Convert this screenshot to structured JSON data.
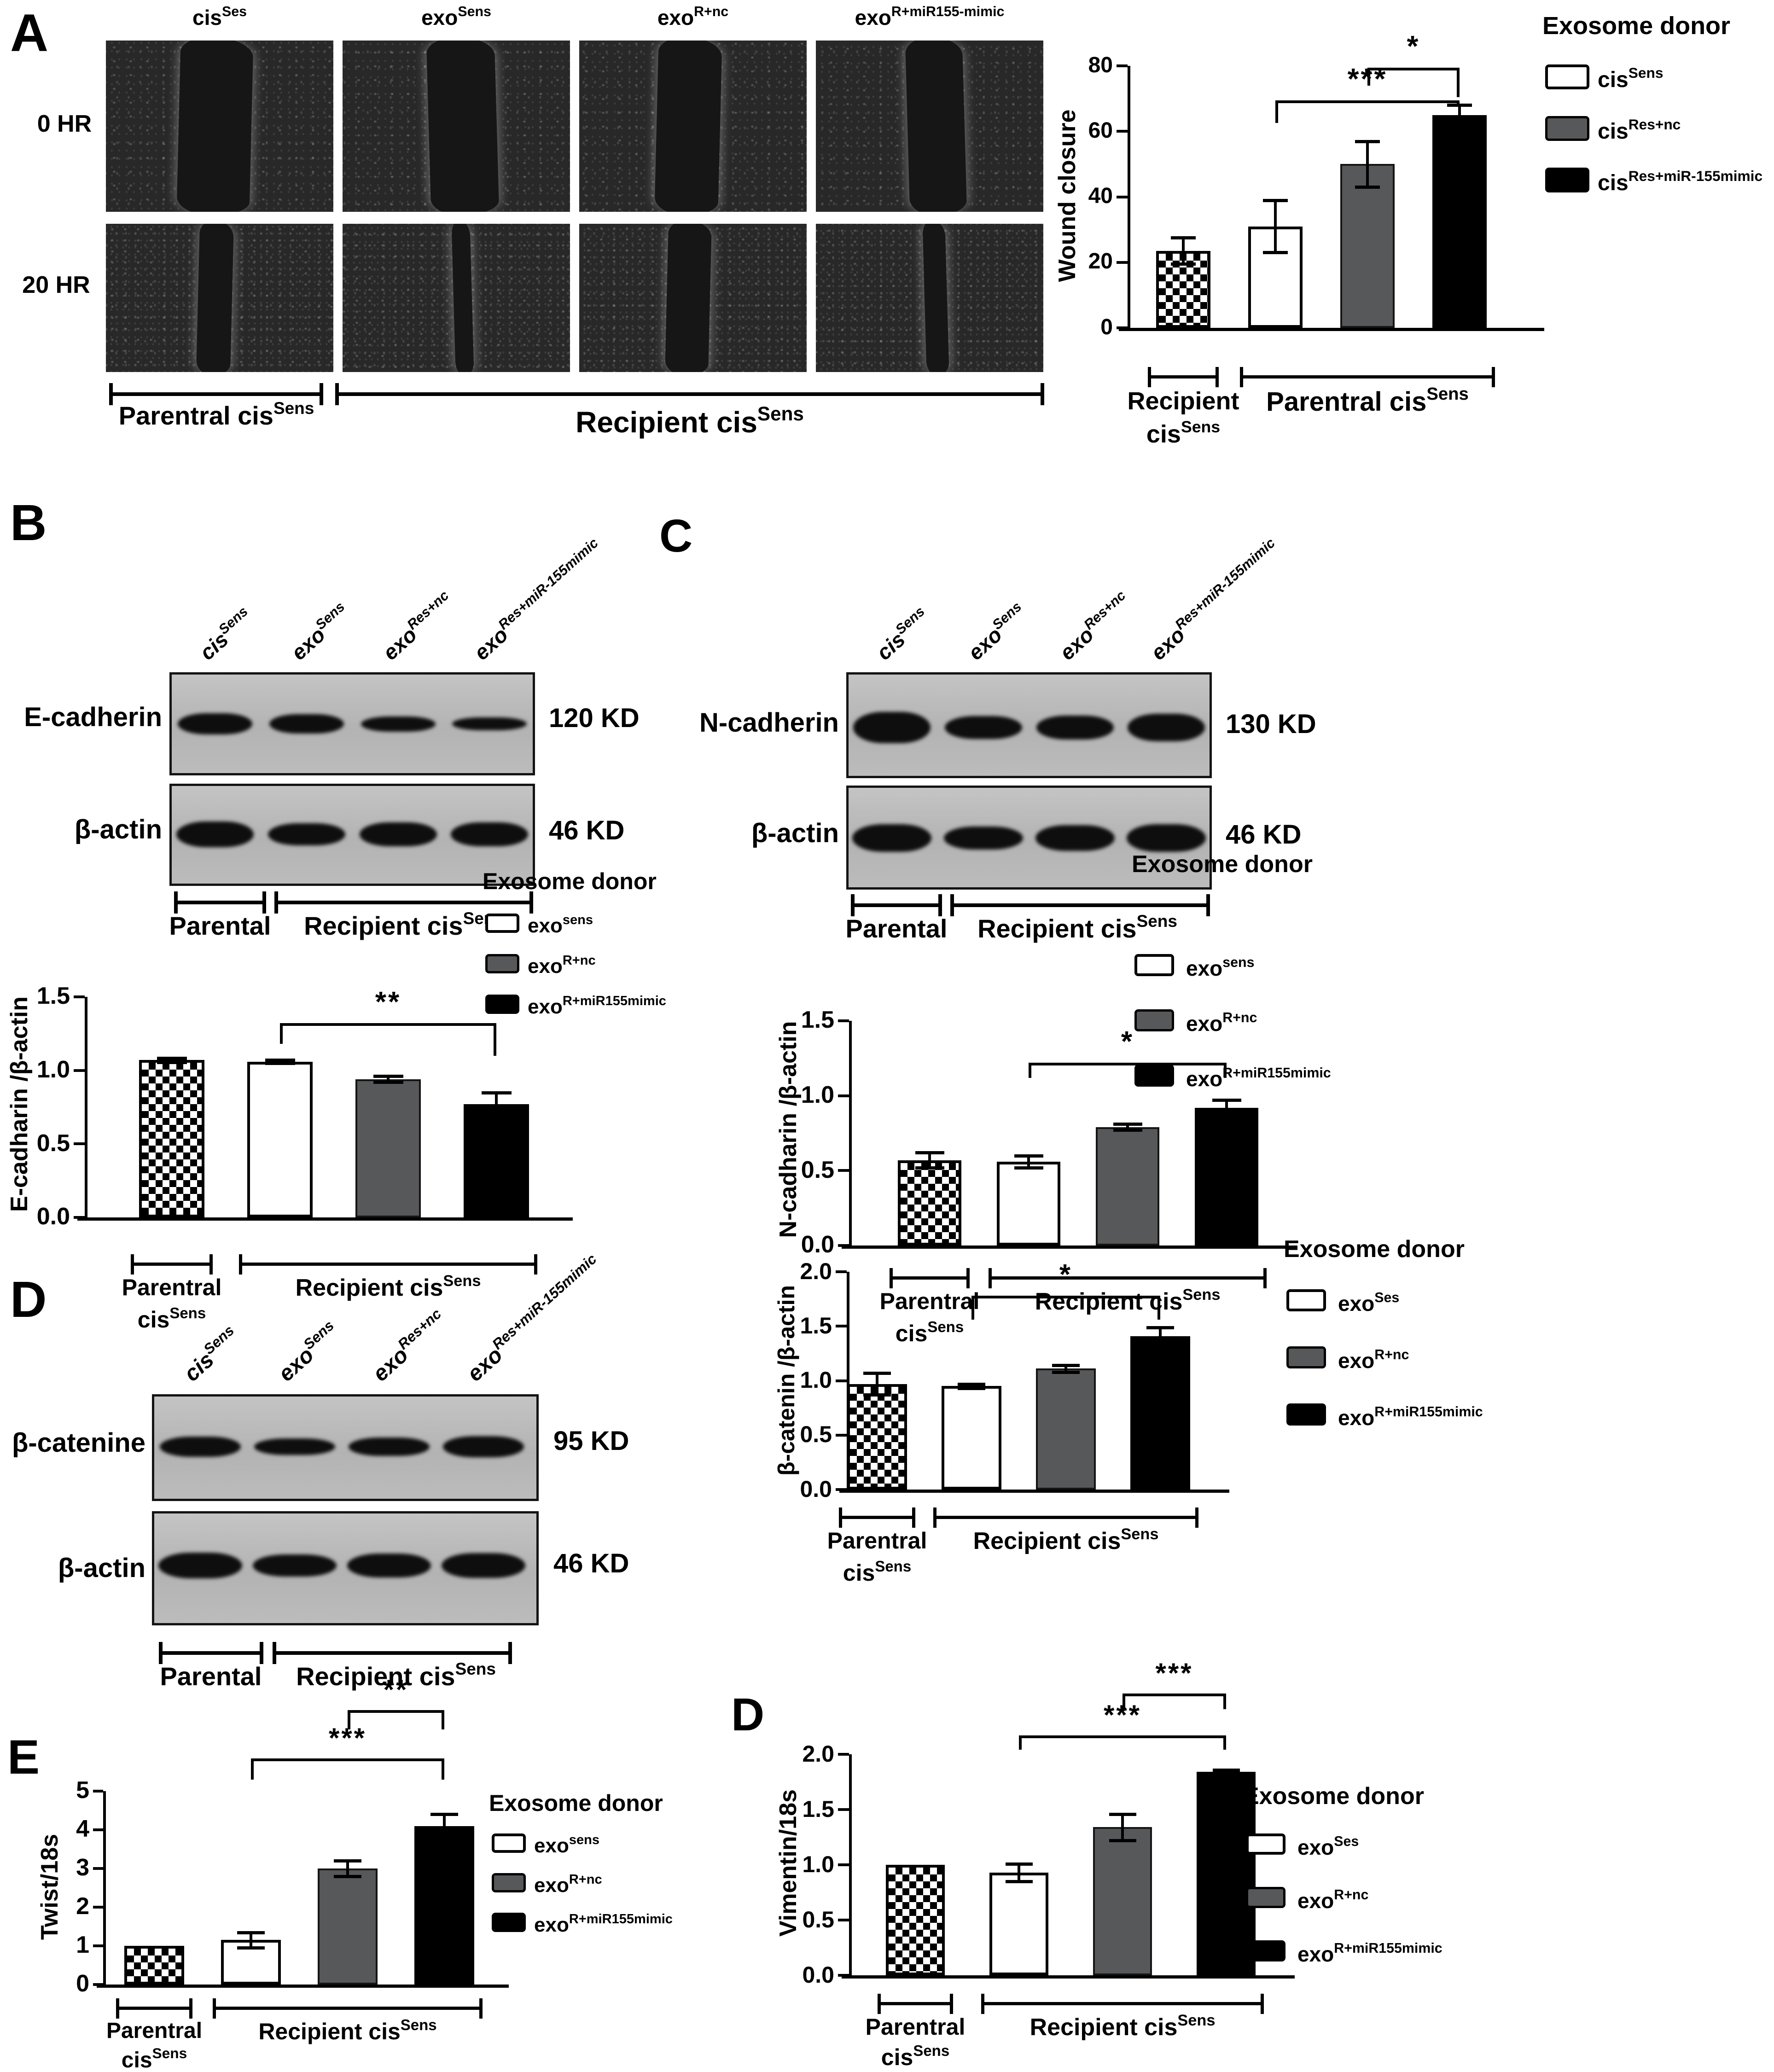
{
  "panel_labels": [
    "A",
    "B",
    "C",
    "D",
    "E",
    "D"
  ],
  "panelA": {
    "row_labels": [
      "0 HR",
      "20 HR"
    ],
    "col_headers": [
      {
        "base": "cis",
        "sup": "Ses"
      },
      {
        "base": "exo",
        "sup": "Sens"
      },
      {
        "base": "exo",
        "sup": "R+nc"
      },
      {
        "base": "exo",
        "sup": "R+miR155-mimic"
      }
    ],
    "groups": [
      {
        "base": "Parentral cis",
        "sup": "Sens"
      },
      {
        "base": "Recipient cis",
        "sup": "Sens"
      }
    ]
  },
  "blots": [
    {
      "panel": "B",
      "lanes": [
        {
          "base": "cis",
          "sup": "Sens"
        },
        {
          "base": "exo",
          "sup": "Sens"
        },
        {
          "base": "exo",
          "sup": "Res+nc"
        },
        {
          "base": "exo",
          "sup": "Res+miR-155mimic"
        }
      ],
      "rows": [
        {
          "protein": "E-cadherin",
          "kd": "120 KD"
        },
        {
          "protein": "β-actin",
          "kd": "46 KD"
        }
      ],
      "groups": [
        {
          "base": "Parental",
          "sup": ""
        },
        {
          "base": "Recipient cis",
          "sup": "Sens"
        }
      ]
    },
    {
      "panel": "C",
      "lanes": [
        {
          "base": "cis",
          "sup": "Sens"
        },
        {
          "base": "exo",
          "sup": "Sens"
        },
        {
          "base": "exo",
          "sup": "Res+nc"
        },
        {
          "base": "exo",
          "sup": "Res+miR-155mimic"
        }
      ],
      "rows": [
        {
          "protein": "N-cadherin",
          "kd": "130 KD"
        },
        {
          "protein": "β-actin",
          "kd": "46 KD"
        }
      ],
      "groups": [
        {
          "base": "Parental",
          "sup": ""
        },
        {
          "base": "Recipient cis",
          "sup": "Sens"
        }
      ]
    },
    {
      "panel": "D",
      "lanes": [
        {
          "base": "cis",
          "sup": "Sens"
        },
        {
          "base": "exo",
          "sup": "Sens"
        },
        {
          "base": "exo",
          "sup": "Res+nc"
        },
        {
          "base": "exo",
          "sup": "Res+miR-155mimic"
        }
      ],
      "rows": [
        {
          "protein": "β-catenine",
          "kd": "95 KD"
        },
        {
          "protein": "β-actin",
          "kd": "46 KD"
        }
      ],
      "groups": [
        {
          "base": "Parental",
          "sup": ""
        },
        {
          "base": "Recipient cis",
          "sup": "Sens"
        }
      ]
    }
  ],
  "chart_data": [
    {
      "id": "wound-closure",
      "type": "bar",
      "ylabel": "Wound closure",
      "ylim": [
        0,
        80
      ],
      "yticks": [
        0,
        20,
        40,
        60,
        80
      ],
      "ytick_labels": [
        "0",
        "20",
        "40",
        "60",
        "80"
      ],
      "legend": {
        "title": "Exosome donor",
        "entries": [
          {
            "style": "white",
            "base": "cis",
            "sup": "Sens"
          },
          {
            "style": "gray",
            "base": "cis",
            "sup": "Res+nc"
          },
          {
            "style": "black",
            "base": "cis",
            "sup": "Res+miR-155mimic"
          }
        ]
      },
      "bars": [
        {
          "style": "checker",
          "value": 23.5,
          "error": 4
        },
        {
          "style": "white",
          "value": 31,
          "error": 8
        },
        {
          "style": "gray",
          "value": 50,
          "error": 7
        },
        {
          "style": "black",
          "value": 65,
          "error": 3
        }
      ],
      "sig_brackets": [
        {
          "from": 2,
          "to": 3,
          "label": "*",
          "y": 79.5,
          "dropL": 5.5,
          "dropR": 9
        },
        {
          "from": 1,
          "to": 3,
          "label": "***",
          "y": 69.5,
          "dropL": 7,
          "dropR": 1.2
        }
      ],
      "xgroups": [
        {
          "bars": [
            0,
            0
          ],
          "lines": [
            {
              "base": "Recipient",
              "sup": ""
            },
            {
              "base": "cis",
              "sup": "Sens"
            }
          ]
        },
        {
          "bars": [
            1,
            3
          ],
          "lines": [
            {
              "base": "Parentral cis",
              "sup": "Sens"
            }
          ]
        }
      ]
    },
    {
      "id": "e-cadherin-ratio",
      "type": "bar",
      "ylabel": "E-cadharin /β-actin",
      "ylim": [
        0,
        1.5
      ],
      "yticks": [
        0,
        0.5,
        1,
        1.5
      ],
      "ytick_labels": [
        "0.0",
        "0.5",
        "1.0",
        "1.5"
      ],
      "legend": {
        "title": "Exosome donor",
        "entries": [
          {
            "style": "white",
            "base": "exo",
            "sup": "sens"
          },
          {
            "style": "gray",
            "base": "exo",
            "sup": "R+nc"
          },
          {
            "style": "black",
            "base": "exo",
            "sup": "R+miR155mimic"
          }
        ]
      },
      "bars": [
        {
          "style": "checker",
          "value": 1.07,
          "error": 0.015
        },
        {
          "style": "white",
          "value": 1.06,
          "error": 0.01
        },
        {
          "style": "gray",
          "value": 0.94,
          "error": 0.02
        },
        {
          "style": "black",
          "value": 0.77,
          "error": 0.08
        }
      ],
      "sig_brackets": [
        {
          "from": 1,
          "to": 3,
          "label": "**",
          "y": 1.32,
          "dropL": 0.14,
          "dropR": 0.22
        }
      ],
      "xgroups": [
        {
          "bars": [
            0,
            0
          ],
          "lines": [
            {
              "base": "Parentral",
              "sup": ""
            },
            {
              "base": "cis",
              "sup": "Sens"
            }
          ]
        },
        {
          "bars": [
            1,
            3
          ],
          "lines": [
            {
              "base": "Recipient cis",
              "sup": "Sens"
            }
          ]
        }
      ]
    },
    {
      "id": "n-cadherin-ratio",
      "type": "bar",
      "ylabel": "N-cadharin /β-actin",
      "ylim": [
        0,
        1.5
      ],
      "yticks": [
        0,
        0.5,
        1,
        1.5
      ],
      "ytick_labels": [
        "0.0",
        "0.5",
        "1.0",
        "1.5"
      ],
      "legend": {
        "title": "Exosome donor",
        "entries": [
          {
            "style": "white",
            "base": "exo",
            "sup": "sens"
          },
          {
            "style": "gray",
            "base": "exo",
            "sup": "R+nc"
          },
          {
            "style": "black",
            "base": "exo",
            "sup": "R+miR155mimic"
          }
        ]
      },
      "bars": [
        {
          "style": "checker",
          "value": 0.57,
          "error": 0.05
        },
        {
          "style": "white",
          "value": 0.56,
          "error": 0.04
        },
        {
          "style": "gray",
          "value": 0.79,
          "error": 0.02
        },
        {
          "style": "black",
          "value": 0.92,
          "error": 0.05
        }
      ],
      "sig_brackets": [
        {
          "from": 1,
          "to": 3,
          "label": "*",
          "y": 1.22,
          "dropL": 0.1,
          "dropR": 0.1
        }
      ],
      "xgroups": [
        {
          "bars": [
            0,
            0
          ],
          "lines": [
            {
              "base": "Parentral",
              "sup": ""
            },
            {
              "base": "cis",
              "sup": "Sens"
            }
          ]
        },
        {
          "bars": [
            1,
            3
          ],
          "lines": [
            {
              "base": "Recipient cis",
              "sup": "Sens"
            }
          ]
        }
      ]
    },
    {
      "id": "b-catenin-ratio",
      "type": "bar",
      "ylabel": "β-catenin /β-actin",
      "ylim": [
        0,
        2
      ],
      "yticks": [
        0,
        0.5,
        1,
        1.5,
        2
      ],
      "ytick_labels": [
        "0.0",
        "0.5",
        "1.0",
        "1.5",
        "2.0"
      ],
      "legend": {
        "title": "Exosome donor",
        "entries": [
          {
            "style": "white",
            "base": "exo",
            "sup": "Ses"
          },
          {
            "style": "gray",
            "base": "exo",
            "sup": "R+nc"
          },
          {
            "style": "black",
            "base": "exo",
            "sup": "R+miR155mimic"
          }
        ]
      },
      "bars": [
        {
          "style": "checker",
          "value": 0.97,
          "error": 0.1
        },
        {
          "style": "white",
          "value": 0.95,
          "error": 0.02
        },
        {
          "style": "gray",
          "value": 1.11,
          "error": 0.03
        },
        {
          "style": "black",
          "value": 1.41,
          "error": 0.08
        }
      ],
      "sig_brackets": [
        {
          "from": 1,
          "to": 3,
          "label": "*",
          "y": 1.78,
          "dropL": 0.22,
          "dropR": 0.22
        }
      ],
      "xgroups": [
        {
          "bars": [
            0,
            0
          ],
          "lines": [
            {
              "base": "Parentral",
              "sup": ""
            },
            {
              "base": "cis",
              "sup": "Sens"
            }
          ]
        },
        {
          "bars": [
            1,
            3
          ],
          "lines": [
            {
              "base": "Recipient  cis",
              "sup": "Sens"
            }
          ]
        }
      ]
    },
    {
      "id": "twist-18s",
      "type": "bar",
      "ylabel": "Twist/18s",
      "ylim": [
        0,
        5
      ],
      "yticks": [
        0,
        1,
        2,
        3,
        4,
        5
      ],
      "ytick_labels": [
        "0",
        "1",
        "2",
        "3",
        "4",
        "5"
      ],
      "legend": {
        "title": "Exosome donor",
        "entries": [
          {
            "style": "white",
            "base": "exo",
            "sup": "sens"
          },
          {
            "style": "gray",
            "base": "exo",
            "sup": "R+nc"
          },
          {
            "style": "black",
            "base": "exo",
            "sup": "R+miR155mimic"
          }
        ]
      },
      "bars": [
        {
          "style": "checker",
          "value": 1.0,
          "error": 0
        },
        {
          "style": "white",
          "value": 1.15,
          "error": 0.2
        },
        {
          "style": "gray",
          "value": 3.0,
          "error": 0.2
        },
        {
          "style": "black",
          "value": 4.1,
          "error": 0.3
        }
      ],
      "sig_brackets": [
        {
          "from": 1,
          "to": 3,
          "label": "***",
          "y": 5.85,
          "dropL": 0.55,
          "dropR": 0.55
        },
        {
          "from": 2,
          "to": 3,
          "label": "**",
          "y": 7.1,
          "dropL": 0.5,
          "dropR": 0.5
        }
      ],
      "xgroups": [
        {
          "bars": [
            0,
            0
          ],
          "lines": [
            {
              "base": "Parentral",
              "sup": ""
            },
            {
              "base": "cis",
              "sup": "Sens"
            }
          ]
        },
        {
          "bars": [
            1,
            3
          ],
          "lines": [
            {
              "base": "Recipient cis",
              "sup": "Sens"
            }
          ]
        }
      ]
    },
    {
      "id": "vimentin-18s",
      "type": "bar",
      "ylabel": "Vimentin/18s",
      "ylim": [
        0,
        2
      ],
      "yticks": [
        0,
        0.5,
        1,
        1.5,
        2
      ],
      "ytick_labels": [
        "0.0",
        "0.5",
        "1.0",
        "1.5",
        "2.0"
      ],
      "legend": {
        "title": "Exosome donor",
        "entries": [
          {
            "style": "white",
            "base": "exo",
            "sup": "Ses"
          },
          {
            "style": "gray",
            "base": "exo",
            "sup": "R+nc"
          },
          {
            "style": "black",
            "base": "exo",
            "sup": "R+miR155mimic"
          }
        ]
      },
      "bars": [
        {
          "style": "checker",
          "value": 1.0,
          "error": 0
        },
        {
          "style": "white",
          "value": 0.93,
          "error": 0.08
        },
        {
          "style": "gray",
          "value": 1.34,
          "error": 0.12
        },
        {
          "style": "black",
          "value": 1.84,
          "error": 0.02
        }
      ],
      "sig_brackets": [
        {
          "from": 1,
          "to": 3,
          "label": "***",
          "y": 2.17,
          "dropL": 0.13,
          "dropR": 0.13
        },
        {
          "from": 2,
          "to": 3,
          "label": "***",
          "y": 2.55,
          "dropL": 0.14,
          "dropR": 0.14
        }
      ],
      "xgroups": [
        {
          "bars": [
            0,
            0
          ],
          "lines": [
            {
              "base": "Parentral",
              "sup": ""
            },
            {
              "base": "cis",
              "sup": "Sens"
            }
          ]
        },
        {
          "bars": [
            1,
            3
          ],
          "lines": [
            {
              "base": "Recipient cis",
              "sup": "Sens"
            }
          ]
        }
      ]
    }
  ]
}
